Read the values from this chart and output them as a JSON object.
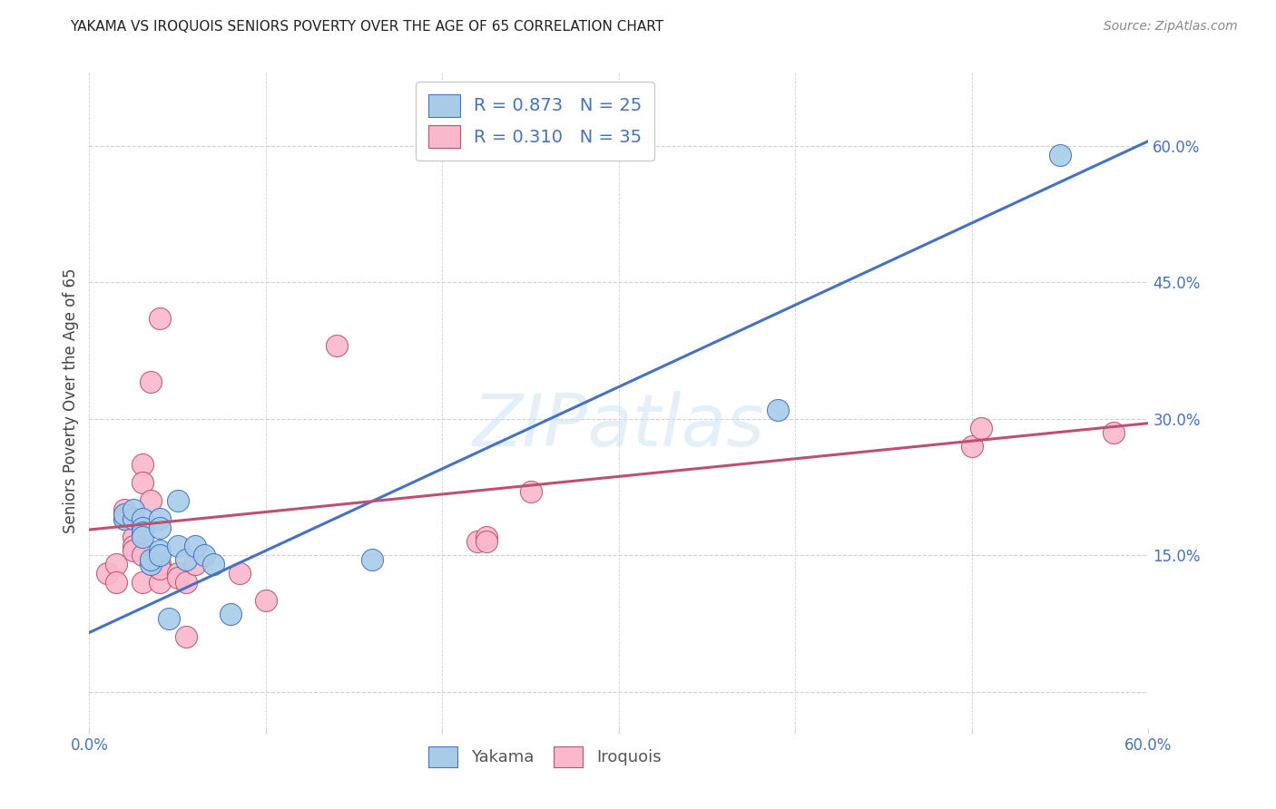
{
  "title": "YAKAMA VS IROQUOIS SENIORS POVERTY OVER THE AGE OF 65 CORRELATION CHART",
  "source": "Source: ZipAtlas.com",
  "ylabel": "Seniors Poverty Over the Age of 65",
  "xlim": [
    0.0,
    0.6
  ],
  "ylim": [
    -0.04,
    0.68
  ],
  "xticks": [
    0.0,
    0.1,
    0.2,
    0.3,
    0.4,
    0.5,
    0.6
  ],
  "xticklabels": [
    "0.0%",
    "",
    "",
    "",
    "",
    "",
    "60.0%"
  ],
  "ytick_positions": [
    0.0,
    0.15,
    0.3,
    0.45,
    0.6
  ],
  "yticklabels": [
    "",
    "15.0%",
    "30.0%",
    "45.0%",
    "60.0%"
  ],
  "yakama_color": "#a8cce8",
  "iroquois_color": "#f9b8cc",
  "yakama_line_color": "#4472c4",
  "iroquois_line_color": "#d46080",
  "yakama_edge_color": "#4472c4",
  "iroquois_edge_color": "#c05070",
  "watermark": "ZIPatlas",
  "legend_r_yakama": "R = 0.873",
  "legend_n_yakama": "N = 25",
  "legend_r_iroquois": "R = 0.310",
  "legend_n_iroquois": "N = 35",
  "yakama_points": [
    [
      0.02,
      0.19
    ],
    [
      0.02,
      0.195
    ],
    [
      0.025,
      0.19
    ],
    [
      0.025,
      0.2
    ],
    [
      0.03,
      0.19
    ],
    [
      0.03,
      0.18
    ],
    [
      0.03,
      0.175
    ],
    [
      0.03,
      0.17
    ],
    [
      0.035,
      0.14
    ],
    [
      0.035,
      0.145
    ],
    [
      0.04,
      0.19
    ],
    [
      0.04,
      0.18
    ],
    [
      0.04,
      0.155
    ],
    [
      0.04,
      0.15
    ],
    [
      0.045,
      0.08
    ],
    [
      0.05,
      0.21
    ],
    [
      0.05,
      0.16
    ],
    [
      0.055,
      0.145
    ],
    [
      0.06,
      0.16
    ],
    [
      0.065,
      0.15
    ],
    [
      0.07,
      0.14
    ],
    [
      0.08,
      0.085
    ],
    [
      0.16,
      0.145
    ],
    [
      0.39,
      0.31
    ],
    [
      0.55,
      0.59
    ]
  ],
  "iroquois_points": [
    [
      0.01,
      0.13
    ],
    [
      0.015,
      0.14
    ],
    [
      0.015,
      0.12
    ],
    [
      0.02,
      0.195
    ],
    [
      0.02,
      0.2
    ],
    [
      0.02,
      0.19
    ],
    [
      0.025,
      0.19
    ],
    [
      0.025,
      0.17
    ],
    [
      0.025,
      0.16
    ],
    [
      0.025,
      0.155
    ],
    [
      0.03,
      0.15
    ],
    [
      0.03,
      0.12
    ],
    [
      0.03,
      0.25
    ],
    [
      0.03,
      0.23
    ],
    [
      0.035,
      0.21
    ],
    [
      0.035,
      0.34
    ],
    [
      0.04,
      0.12
    ],
    [
      0.04,
      0.14
    ],
    [
      0.04,
      0.135
    ],
    [
      0.04,
      0.41
    ],
    [
      0.05,
      0.13
    ],
    [
      0.05,
      0.125
    ],
    [
      0.055,
      0.12
    ],
    [
      0.055,
      0.06
    ],
    [
      0.06,
      0.14
    ],
    [
      0.085,
      0.13
    ],
    [
      0.1,
      0.1
    ],
    [
      0.14,
      0.38
    ],
    [
      0.22,
      0.165
    ],
    [
      0.225,
      0.17
    ],
    [
      0.225,
      0.165
    ],
    [
      0.25,
      0.22
    ],
    [
      0.5,
      0.27
    ],
    [
      0.505,
      0.29
    ],
    [
      0.58,
      0.285
    ]
  ],
  "yakama_trend_x": [
    0.0,
    0.6
  ],
  "yakama_trend_y": [
    0.065,
    0.605
  ],
  "iroquois_trend_x": [
    0.0,
    0.6
  ],
  "iroquois_trend_y": [
    0.178,
    0.295
  ],
  "background_color": "#ffffff",
  "grid_color": "#d0d0d0",
  "yticklabel_color": "#4472c4",
  "xticklabel_color": "#4472c4"
}
